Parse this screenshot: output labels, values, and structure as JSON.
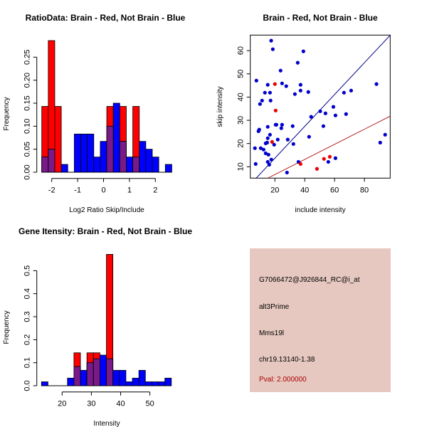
{
  "chart_data": [
    {
      "type": "bar",
      "title": "RatioData: Brain - Red, Not Brain - Blue",
      "xlabel": "Log2 Ratio Skip/Include",
      "ylabel": "Frequency",
      "bin_start": -2.385,
      "bin_width": 0.251,
      "xticks": [
        "-2",
        "-1",
        "0",
        "1",
        "2"
      ],
      "yticks": [
        "0.00",
        "0.05",
        "0.10",
        "0.15",
        "0.20",
        "0.25"
      ],
      "ylim": [
        0,
        0.29
      ],
      "series": [
        {
          "name": "Brain",
          "color": "#ff0000",
          "values": [
            0.143,
            0.286,
            0.143,
            0,
            0,
            0,
            0,
            0,
            0,
            0,
            0.143,
            0,
            0.143,
            0,
            0.143,
            0,
            0,
            0,
            0,
            0
          ]
        },
        {
          "name": "Not Brain",
          "color": "#0000ff",
          "values": [
            0.033,
            0.05,
            0,
            0.017,
            0,
            0.083,
            0.083,
            0.083,
            0.033,
            0.067,
            0.1,
            0.15,
            0.067,
            0.033,
            0.033,
            0.067,
            0.05,
            0.033,
            0,
            0.017
          ]
        }
      ],
      "overlap_color": "#7a1a8a"
    },
    {
      "type": "scatter",
      "title": "Brain - Red, Not Brain - Blue",
      "xlabel": "include intensity",
      "ylabel": "skip intensity",
      "xlim": [
        3.5,
        97.3
      ],
      "ylim": [
        5.1,
        66.7
      ],
      "xticks": [
        "20",
        "40",
        "60",
        "80"
      ],
      "yticks": [
        "10",
        "20",
        "30",
        "40",
        "50",
        "60"
      ],
      "series": [
        {
          "name": "Not Brain",
          "color": "#0000cc",
          "points": [
            [
              17.5,
              64.3
            ],
            [
              18.6,
              60.6
            ],
            [
              39.1,
              59.7
            ],
            [
              35.3,
              54.8
            ],
            [
              23.8,
              51.4
            ],
            [
              7.6,
              47.1
            ],
            [
              15.2,
              45.3
            ],
            [
              24.8,
              45.9
            ],
            [
              27.6,
              44.7
            ],
            [
              37.2,
              45.3
            ],
            [
              37.2,
              42.8
            ],
            [
              13.3,
              41.9
            ],
            [
              16.7,
              41.9
            ],
            [
              33.4,
              41.3
            ],
            [
              42.4,
              42.2
            ],
            [
              11.4,
              38.5
            ],
            [
              17.1,
              38.5
            ],
            [
              10.0,
              37.0
            ],
            [
              66.3,
              41.9
            ],
            [
              71.1,
              42.8
            ],
            [
              88.1,
              45.6
            ],
            [
              50.4,
              33.9
            ],
            [
              53.9,
              33.0
            ],
            [
              59.2,
              35.8
            ],
            [
              60.6,
              32.1
            ],
            [
              67.7,
              32.7
            ],
            [
              44.3,
              31.5
            ],
            [
              9.0,
              25.3
            ],
            [
              9.5,
              26.0
            ],
            [
              15.2,
              27.2
            ],
            [
              20.5,
              28.1
            ],
            [
              21.0,
              28.1
            ],
            [
              24.8,
              28.1
            ],
            [
              24.3,
              26.6
            ],
            [
              31.9,
              27.5
            ],
            [
              52.5,
              27.5
            ],
            [
              16.7,
              23.8
            ],
            [
              15.2,
              22.3
            ],
            [
              21.9,
              21.7
            ],
            [
              28.6,
              21.7
            ],
            [
              42.9,
              22.9
            ],
            [
              13.8,
              20.1
            ],
            [
              14.8,
              20.4
            ],
            [
              19.5,
              19.5
            ],
            [
              32.4,
              19.8
            ],
            [
              6.6,
              18.0
            ],
            [
              10.5,
              18.0
            ],
            [
              12.4,
              17.4
            ],
            [
              13.8,
              15.8
            ],
            [
              15.7,
              15.2
            ],
            [
              17.6,
              13.1
            ],
            [
              15.2,
              12.1
            ],
            [
              16.2,
              10.9
            ],
            [
              7.1,
              11.2
            ],
            [
              35.8,
              12.1
            ],
            [
              55.8,
              12.1
            ],
            [
              60.6,
              13.7
            ],
            [
              28.1,
              7.5
            ],
            [
              90.6,
              20.4
            ],
            [
              93.9,
              23.8
            ]
          ],
          "fit_line": {
            "slope": 0.685,
            "intercept": 0.0,
            "color": "#00008b"
          }
        },
        {
          "name": "Brain",
          "color": "#ee0000",
          "points": [
            [
              20.0,
              45.6
            ],
            [
              20.5,
              34.2
            ],
            [
              18.1,
              20.7
            ],
            [
              37.2,
              11.2
            ],
            [
              48.2,
              9.1
            ],
            [
              52.9,
              13.4
            ],
            [
              56.8,
              14.3
            ]
          ],
          "fit_line": {
            "slope": 0.325,
            "intercept": 0.16,
            "color": "#b22222"
          }
        }
      ]
    },
    {
      "type": "bar",
      "title": "Gene Itensity: Brain - Red, Not Brain - Blue",
      "xlabel": "Intensity",
      "ylabel": "Frequency",
      "bin_start": 12.94,
      "bin_width": 2.22,
      "xticks": [
        "20",
        "30",
        "40",
        "50"
      ],
      "yticks": [
        "0.0",
        "0.1",
        "0.2",
        "0.3",
        "0.4",
        "0.5"
      ],
      "ylim": [
        0,
        0.58
      ],
      "series": [
        {
          "name": "Brain",
          "color": "#ff0000",
          "values": [
            0,
            0,
            0,
            0,
            0,
            0.143,
            0,
            0.143,
            0.143,
            0,
            0.571,
            0,
            0,
            0,
            0,
            0,
            0,
            0,
            0,
            0
          ]
        },
        {
          "name": "Not Brain",
          "color": "#0000ff",
          "values": [
            0.017,
            0,
            0,
            0,
            0.033,
            0.083,
            0.067,
            0.1,
            0.117,
            0.133,
            0.117,
            0.067,
            0.067,
            0.017,
            0.033,
            0.067,
            0.017,
            0.017,
            0.017,
            0.033
          ]
        }
      ],
      "overlap_color": "#7a1a8a"
    }
  ],
  "info_panel": {
    "background": "#e6c8c0",
    "probe_id": "G7066472@J926844_RC@i_at",
    "event_type": "alt3Prime",
    "gene": "Mms19l",
    "location": "chr19.13140-1.38",
    "pval": "Pval: 2.000000",
    "pval_color": "#aa0000"
  }
}
